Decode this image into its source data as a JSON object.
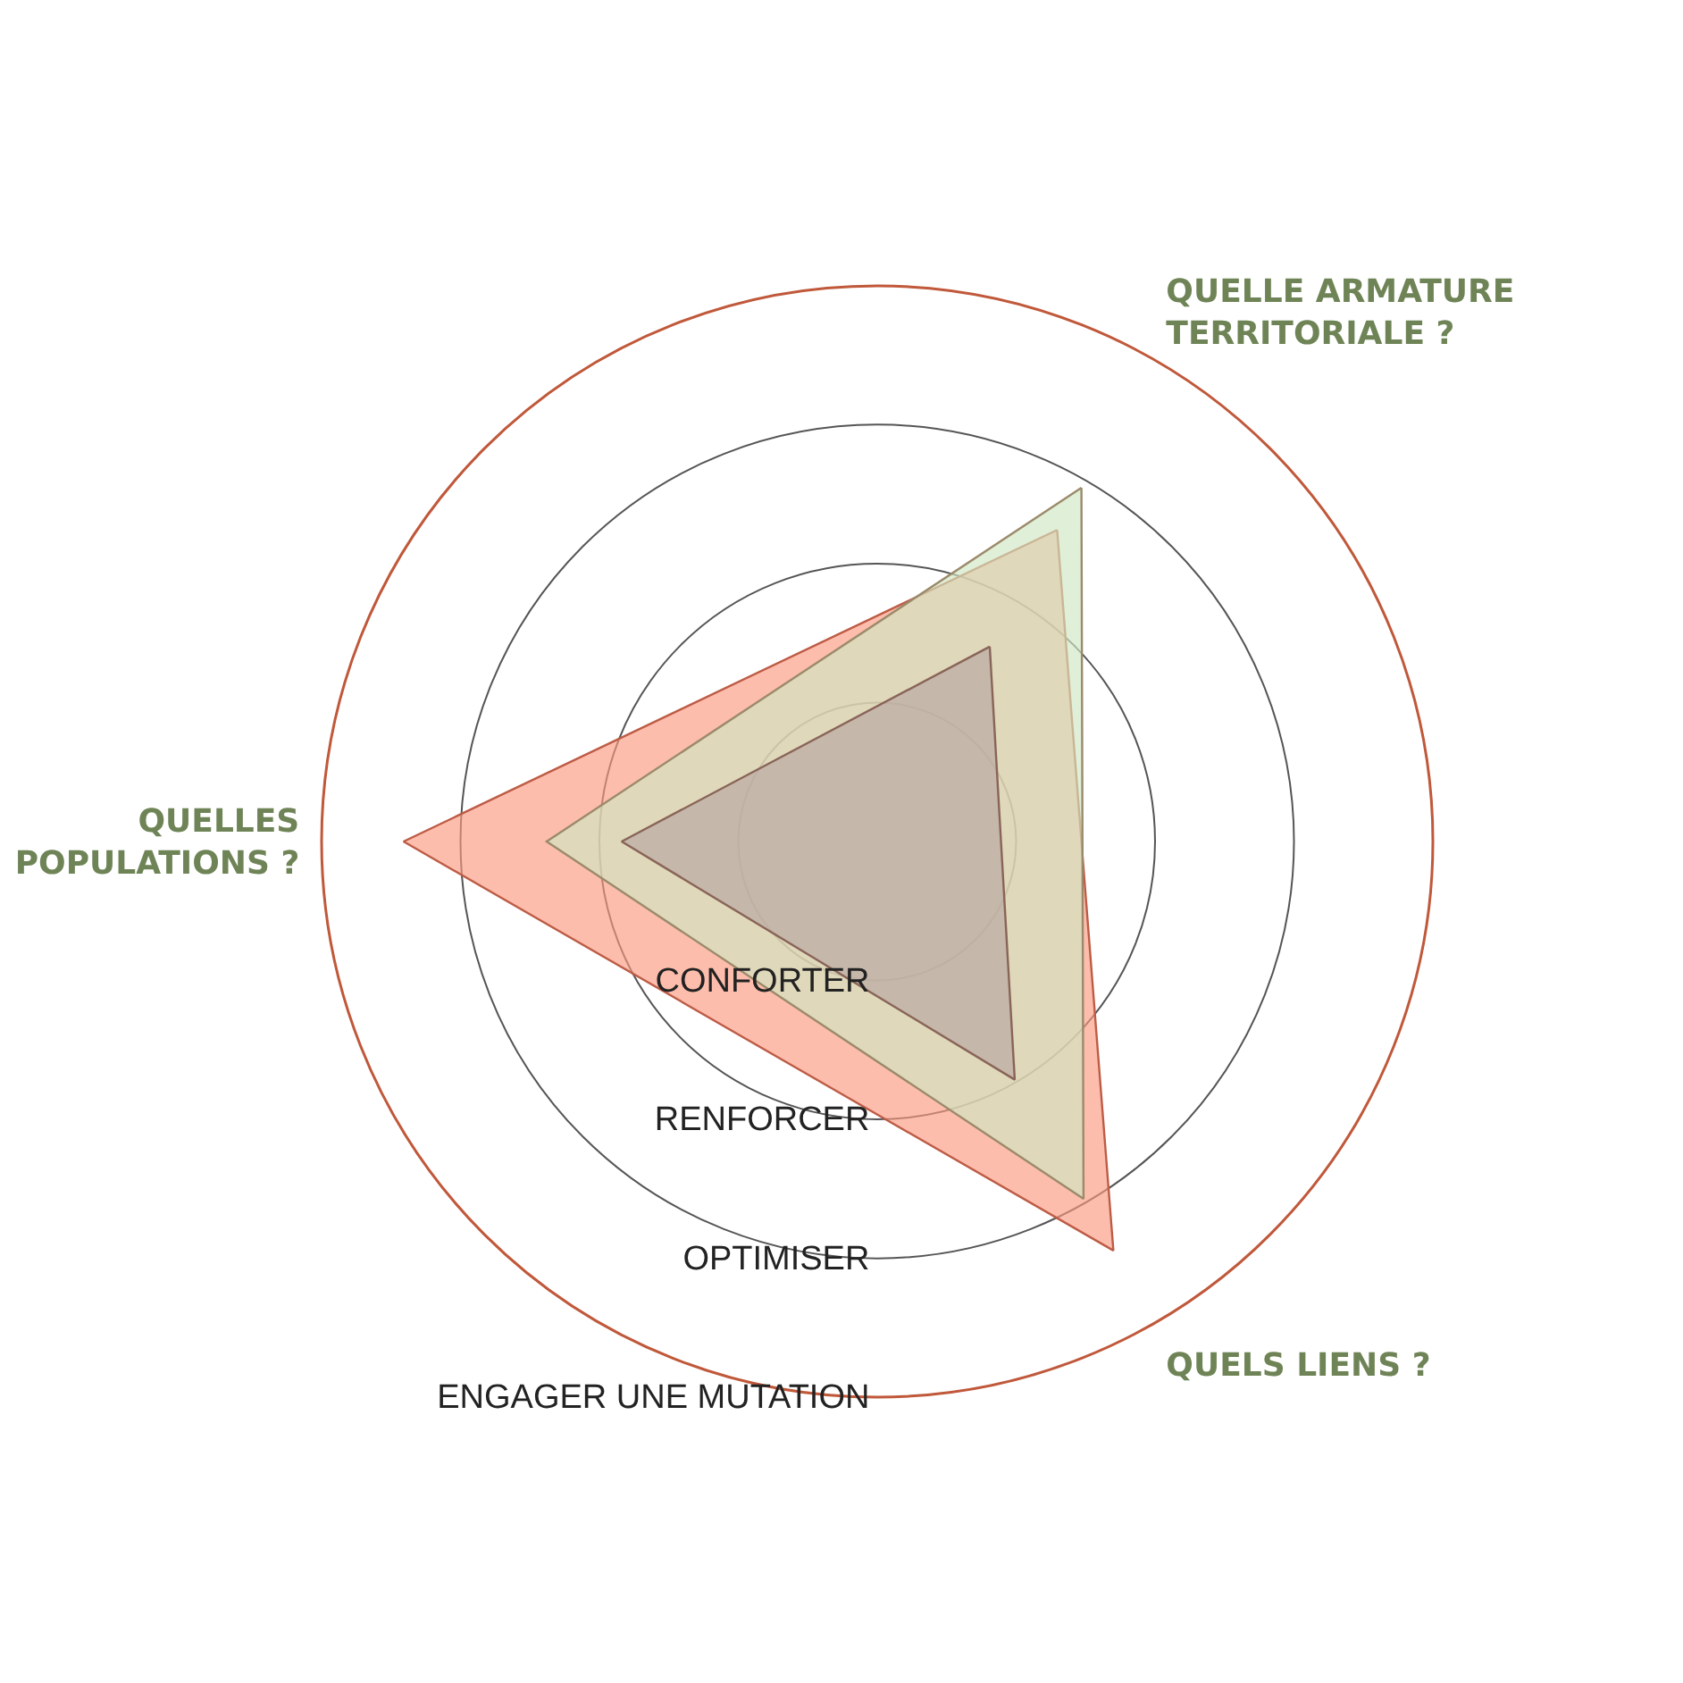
{
  "chart_data": {
    "type": "radar",
    "categories": [
      "QUELLE ARMATURE TERRITORIALE ?",
      "QUELS LIENS ?",
      "QUELLES POPULATIONS ?"
    ],
    "series": [
      {
        "color": "#fc9a80",
        "values": [
          2.59,
          3.4,
          3.41
        ]
      },
      {
        "color": "#cfe6c2",
        "values": [
          2.94,
          2.97,
          2.38
        ]
      },
      {
        "color": "#b7a6a0",
        "values": [
          1.62,
          1.98,
          1.84
        ]
      }
    ],
    "ylim": [
      0,
      4
    ],
    "yticks": [
      {
        "value": 1,
        "label": "CONFORTER"
      },
      {
        "value": 2,
        "label": "RENFORCER"
      },
      {
        "value": 3,
        "label": "OPTIMISER"
      },
      {
        "value": 4,
        "label": "ENGAGER UNE MUTATION"
      }
    ],
    "grid": "y"
  }
}
